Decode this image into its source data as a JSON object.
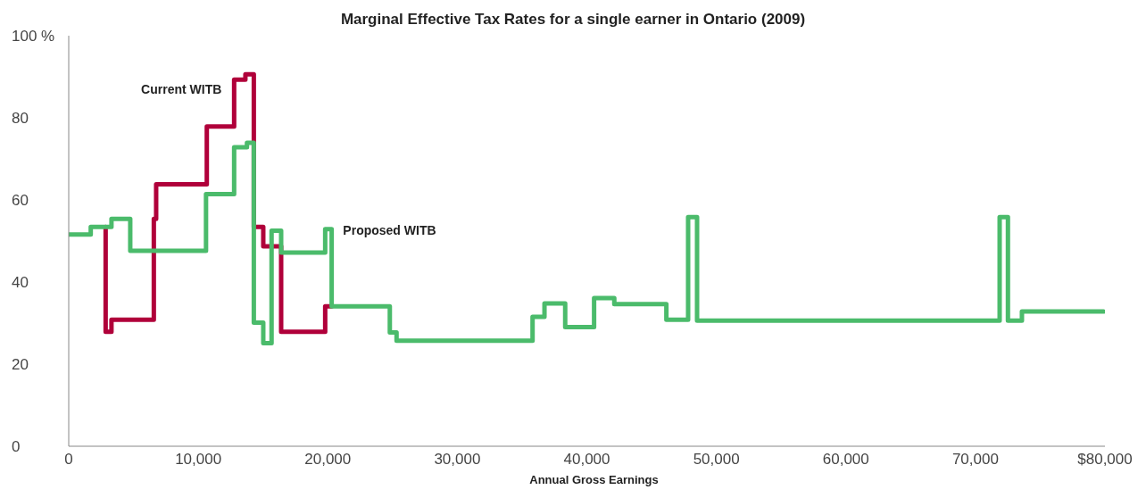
{
  "chart_data": {
    "type": "step",
    "title": "Marginal Effective Tax Rates for a single earner in Ontario (2009)",
    "xlabel": "Annual Gross Earnings",
    "xlim": [
      0,
      80000
    ],
    "xticks": [
      0,
      {
        "value": 10000,
        "label": "10,000"
      },
      {
        "value": 20000,
        "label": "20,000"
      },
      {
        "value": 30000,
        "label": "30,000"
      },
      {
        "value": 40000,
        "label": "40,000"
      },
      {
        "value": 50000,
        "label": "50,000"
      },
      {
        "value": 60000,
        "label": "60,000"
      },
      {
        "value": 70000,
        "label": "70,000"
      },
      {
        "value": 80000,
        "label": "$80,000"
      }
    ],
    "ylim": [
      0,
      100
    ],
    "yticks": [
      0,
      20,
      40,
      60,
      80,
      {
        "value": 100,
        "label": "100 %"
      }
    ],
    "grid": false,
    "legend": false,
    "marker": "none",
    "line_style": "solid",
    "series": [
      {
        "name": "Current WITB",
        "color": "#b0003a",
        "x": [
          2850,
          2850,
          3300,
          6570,
          6750,
          10660,
          12770,
          13640,
          14290,
          15020,
          16400,
          19800,
          20300
        ],
        "values": [
          53.4,
          27.9,
          30.8,
          55.4,
          63.8,
          77.9,
          89.3,
          90.6,
          53.4,
          48.7,
          27.9,
          34.1,
          34.1
        ]
      },
      {
        "name": "Proposed WITB",
        "color": "#4bbb6b",
        "x": [
          0,
          1700,
          3300,
          4750,
          10600,
          12770,
          13760,
          14290,
          15020,
          15660,
          16400,
          19800,
          20300,
          24790,
          25310,
          35810,
          36730,
          38330,
          40560,
          42120,
          46140,
          47820,
          48510,
          71870,
          72510,
          73590,
          79900
        ],
        "values": [
          51.6,
          53.4,
          55.4,
          47.6,
          61.4,
          72.8,
          73.9,
          30.1,
          25.1,
          52.5,
          47.2,
          52.9,
          34.1,
          27.7,
          25.7,
          31.5,
          34.8,
          29.0,
          36.1,
          34.6,
          30.8,
          55.8,
          30.6,
          55.8,
          30.6,
          32.8,
          32.8
        ]
      }
    ]
  }
}
